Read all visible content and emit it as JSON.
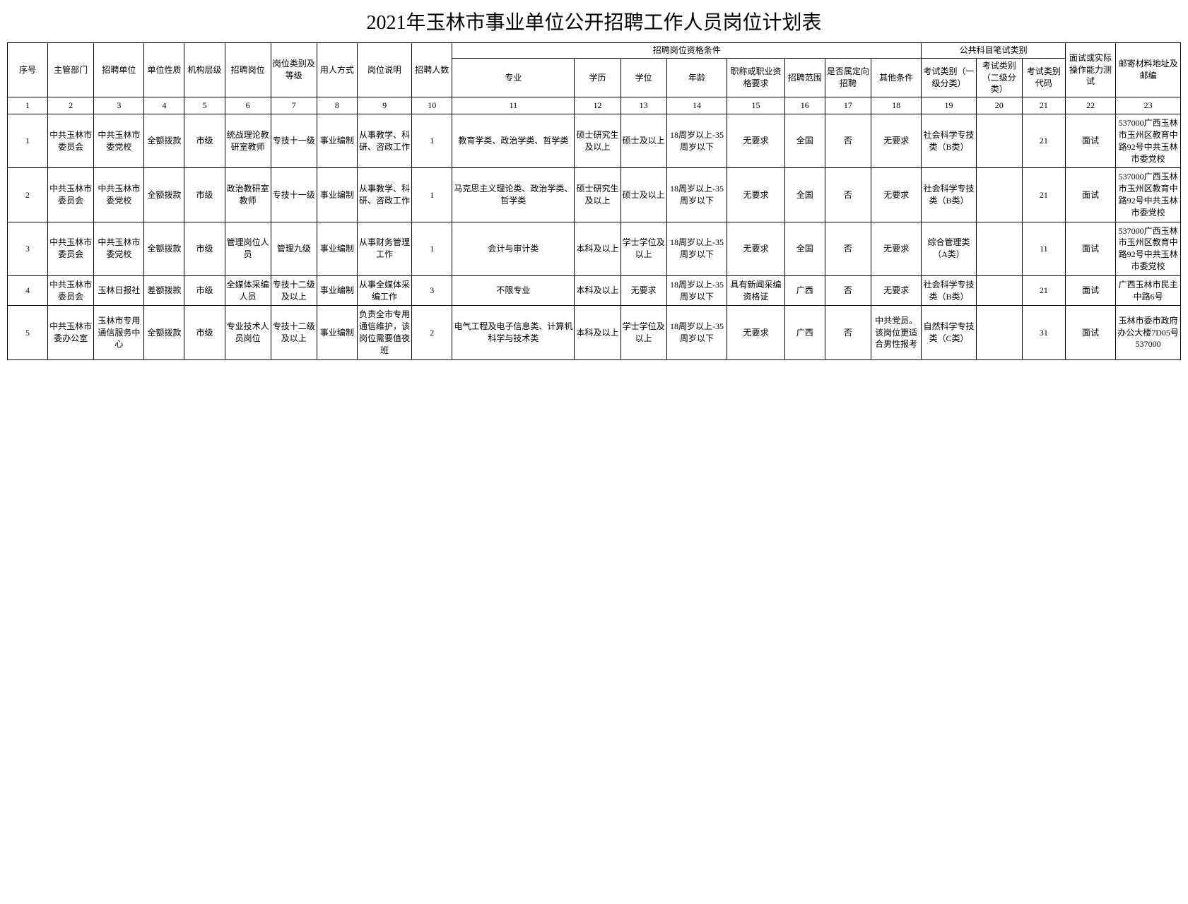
{
  "title": "2021年玉林市事业单位公开招聘工作人员岗位计划表",
  "headers": {
    "group1": "招聘岗位资格条件",
    "group2": "公共科目笔试类别",
    "h1": "序号",
    "h2": "主管部门",
    "h3": "招聘单位",
    "h4": "单位性质",
    "h5": "机构层级",
    "h6": "招聘岗位",
    "h7": "岗位类别及等级",
    "h8": "用人方式",
    "h9": "岗位说明",
    "h10": "招聘人数",
    "h11": "专业",
    "h12": "学历",
    "h13": "学位",
    "h14": "年龄",
    "h15": "职称或职业资格要求",
    "h16": "招聘范围",
    "h17": "是否属定向招聘",
    "h18": "其他条件",
    "h19": "考试类别（一级分类）",
    "h20": "考试类别（二级分类）",
    "h21": "考试类别代码",
    "h22": "面试或实际操作能力测试",
    "h23": "邮寄材料地址及邮编"
  },
  "numbers": [
    "1",
    "2",
    "3",
    "4",
    "5",
    "6",
    "7",
    "8",
    "9",
    "10",
    "11",
    "12",
    "13",
    "14",
    "15",
    "16",
    "17",
    "18",
    "19",
    "20",
    "21",
    "22",
    "23"
  ],
  "rows": [
    {
      "c1": "1",
      "c2": "中共玉林市委员会",
      "c3": "中共玉林市委党校",
      "c4": "全额拨款",
      "c5": "市级",
      "c6": "统战理论教研室教师",
      "c7": "专技十一级",
      "c8": "事业编制",
      "c9": "从事教学、科研、咨政工作",
      "c10": "1",
      "c11": "教育学类、政治学类、哲学类",
      "c12": "硕士研究生及以上",
      "c13": "硕士及以上",
      "c14": "18周岁以上-35周岁以下",
      "c15": "无要求",
      "c16": "全国",
      "c17": "否",
      "c18": "无要求",
      "c19": "社会科学专技类（B类）",
      "c20": "",
      "c21": "21",
      "c22": "面试",
      "c23": "537000广西玉林市玉州区教育中路92号中共玉林市委党校"
    },
    {
      "c1": "2",
      "c2": "中共玉林市委员会",
      "c3": "中共玉林市委党校",
      "c4": "全额拨款",
      "c5": "市级",
      "c6": "政治教研室教师",
      "c7": "专技十一级",
      "c8": "事业编制",
      "c9": "从事教学、科研、咨政工作",
      "c10": "1",
      "c11": "马克思主义理论类、政治学类、哲学类",
      "c12": "硕士研究生及以上",
      "c13": "硕士及以上",
      "c14": "18周岁以上-35周岁以下",
      "c15": "无要求",
      "c16": "全国",
      "c17": "否",
      "c18": "无要求",
      "c19": "社会科学专技类（B类）",
      "c20": "",
      "c21": "21",
      "c22": "面试",
      "c23": "537000广西玉林市玉州区教育中路92号中共玉林市委党校"
    },
    {
      "c1": "3",
      "c2": "中共玉林市委员会",
      "c3": "中共玉林市委党校",
      "c4": "全额拨款",
      "c5": "市级",
      "c6": "管理岗位人员",
      "c7": "管理九级",
      "c8": "事业编制",
      "c9": "从事财务管理工作",
      "c10": "1",
      "c11": "会计与审计类",
      "c12": "本科及以上",
      "c13": "学士学位及以上",
      "c14": "18周岁以上-35周岁以下",
      "c15": "无要求",
      "c16": "全国",
      "c17": "否",
      "c18": "无要求",
      "c19": "综合管理类（A类）",
      "c20": "",
      "c21": "11",
      "c22": "面试",
      "c23": "537000广西玉林市玉州区教育中路92号中共玉林市委党校"
    },
    {
      "c1": "4",
      "c2": "中共玉林市委员会",
      "c3": "玉林日报社",
      "c4": "差额拨款",
      "c5": "市级",
      "c6": "全媒体采编人员",
      "c7": "专技十二级及以上",
      "c8": "事业编制",
      "c9": "从事全媒体采编工作",
      "c10": "3",
      "c11": "不限专业",
      "c12": "本科及以上",
      "c13": "无要求",
      "c14": "18周岁以上-35周岁以下",
      "c15": "具有新闻采编资格证",
      "c16": "广西",
      "c17": "否",
      "c18": "无要求",
      "c19": "社会科学专技类（B类）",
      "c20": "",
      "c21": "21",
      "c22": "面试",
      "c23": "广西玉林市民主中路6号"
    },
    {
      "c1": "5",
      "c2": "中共玉林市委办公室",
      "c3": "玉林市专用通信服务中心",
      "c4": "全额拨款",
      "c5": "市级",
      "c6": "专业技术人员岗位",
      "c7": "专技十二级及以上",
      "c8": "事业编制",
      "c9": "负责全市专用通信维护，该岗位需要值夜班",
      "c10": "2",
      "c11": "电气工程及电子信息类、计算机科学与技术类",
      "c12": "本科及以上",
      "c13": "学士学位及以上",
      "c14": "18周岁以上-35周岁以下",
      "c15": "无要求",
      "c16": "广西",
      "c17": "否",
      "c18": "中共党员。该岗位更适合男性报考",
      "c19": "自然科学专技类（C类）",
      "c20": "",
      "c21": "31",
      "c22": "面试",
      "c23": "玉林市委市政府办公大楼7D05号537000"
    }
  ]
}
